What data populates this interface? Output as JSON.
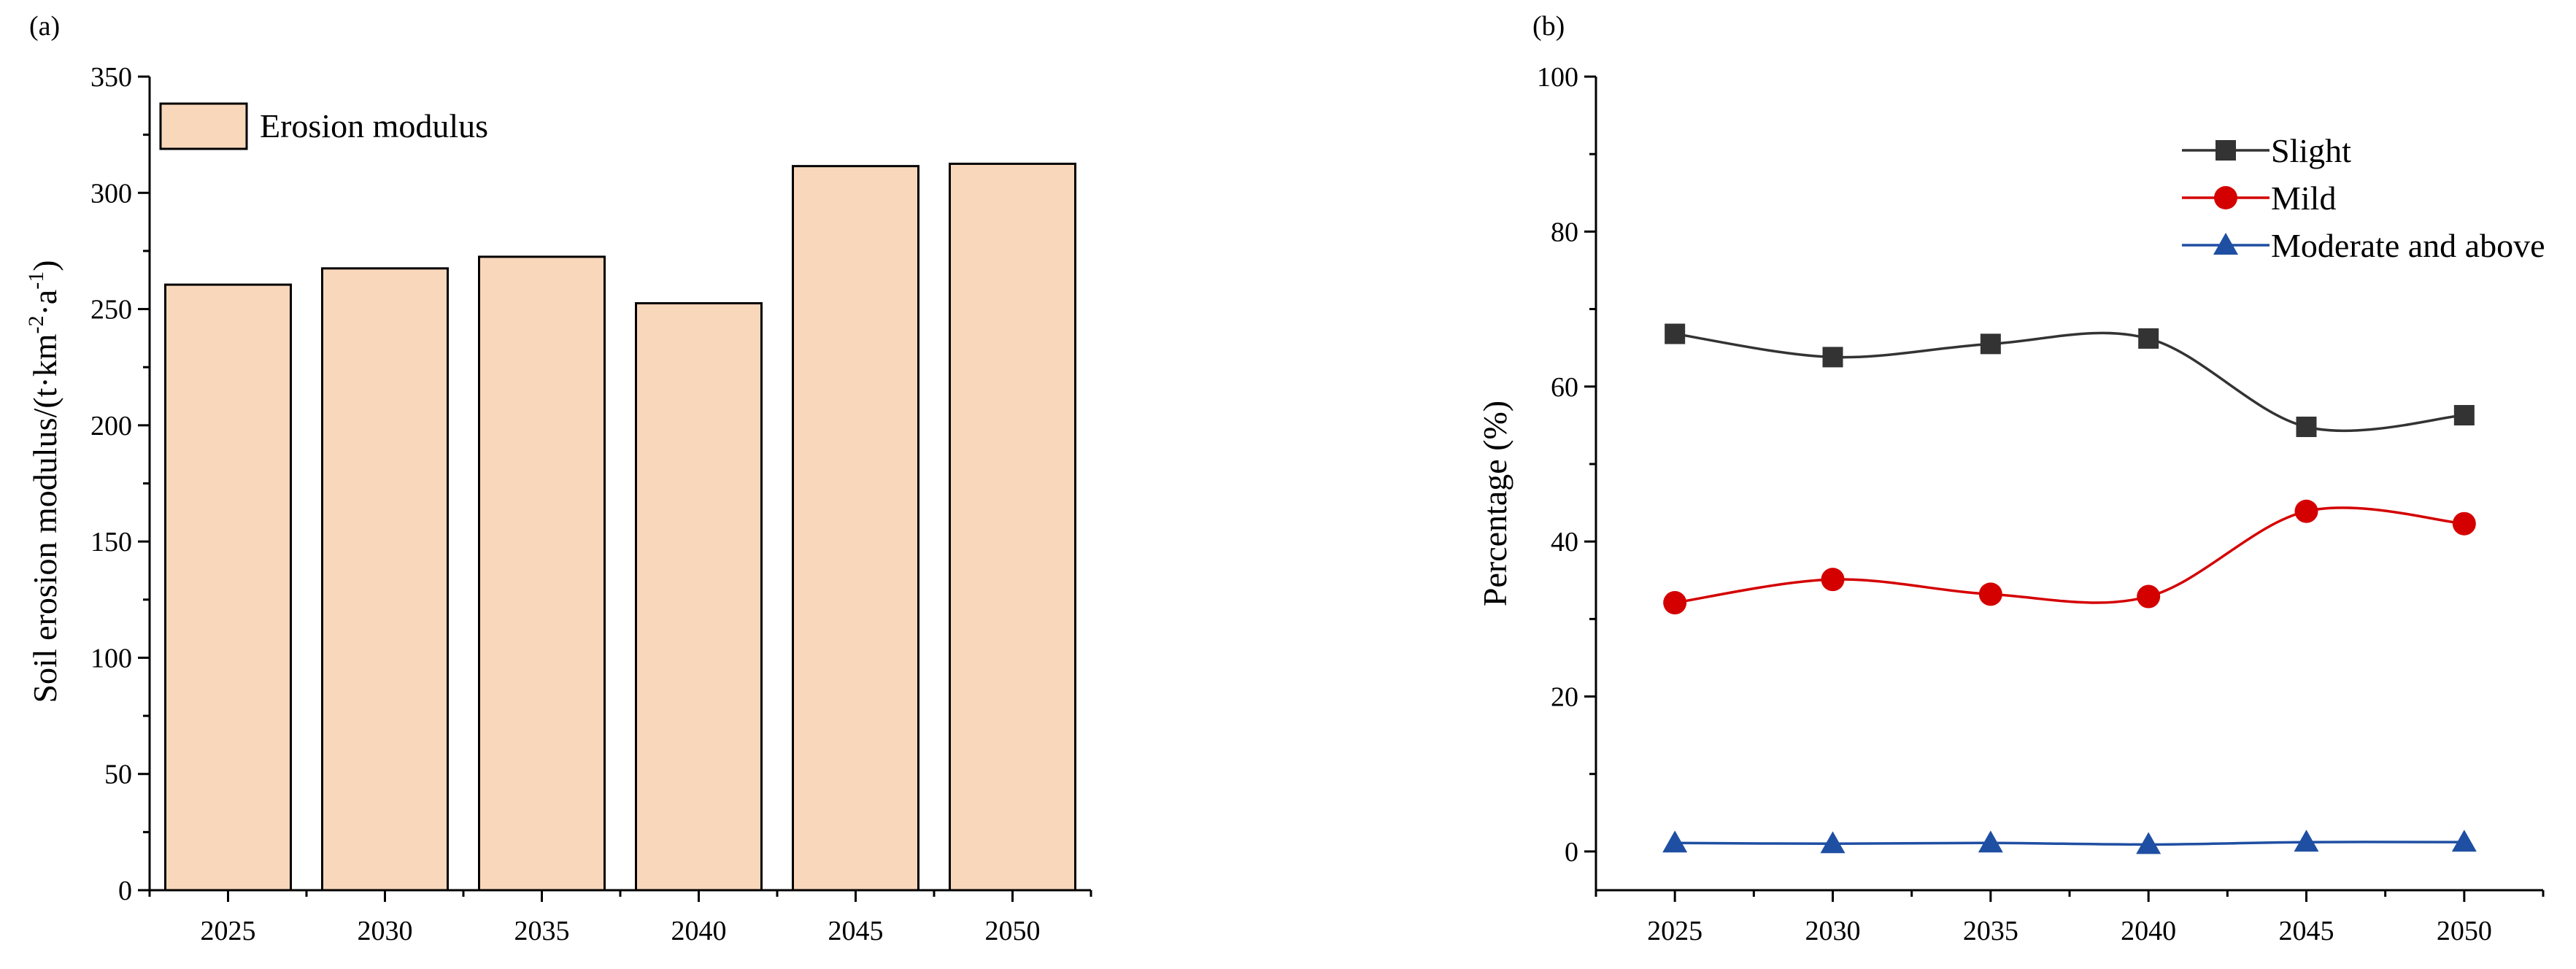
{
  "chart_data": [
    {
      "panel_label": "(a)",
      "type": "bar",
      "categories": [
        "2025",
        "2030",
        "2035",
        "2040",
        "2045",
        "2050"
      ],
      "series": [
        {
          "name": "Erosion modulus",
          "values": [
            260.5,
            267.5,
            272.5,
            252.5,
            311.5,
            312.5
          ]
        }
      ],
      "ylabel": {
        "base": "Soil erosion modulus/(t·km",
        "sup1": "-2",
        "mid": "·a",
        "sup2": "-1",
        "end": ")"
      },
      "xlabel": "",
      "ylim": [
        0,
        350
      ],
      "y_ticks": [
        0,
        50,
        100,
        150,
        200,
        250,
        300,
        350
      ],
      "grid": false,
      "legend_position": "top-left",
      "colors": {
        "bar_fill": "#f9d7bb",
        "bar_stroke": "#000000"
      }
    },
    {
      "panel_label": "(b)",
      "type": "line",
      "x": [
        "2025",
        "2030",
        "2035",
        "2040",
        "2045",
        "2050"
      ],
      "series": [
        {
          "name": "Slight",
          "values": [
            66.8,
            63.8,
            65.5,
            66.2,
            54.8,
            56.3
          ],
          "color": "#333333",
          "marker": "square"
        },
        {
          "name": "Mild",
          "values": [
            32.1,
            35.1,
            33.2,
            32.9,
            43.9,
            42.3
          ],
          "color": "#d40000",
          "marker": "circle"
        },
        {
          "name": "Moderate and above",
          "values": [
            1.1,
            1.0,
            1.1,
            0.9,
            1.2,
            1.2
          ],
          "color": "#1f4fa3",
          "marker": "triangle"
        }
      ],
      "ylabel": "Percentage (%)",
      "xlabel": "",
      "ylim": [
        -5,
        100
      ],
      "y_ticks": [
        0,
        20,
        40,
        60,
        80,
        100
      ],
      "grid": false,
      "smooth": true,
      "legend_position": "top-right"
    }
  ]
}
